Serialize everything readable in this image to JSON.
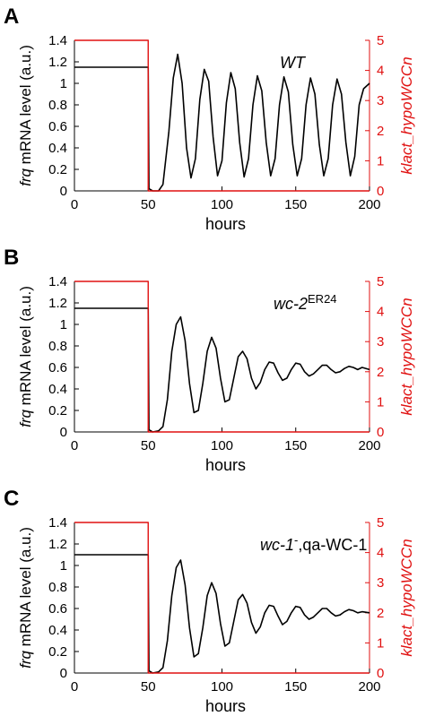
{
  "chart_data": [
    {
      "type": "line",
      "panel": "A",
      "annotation": {
        "italic": "WT",
        "sup": "",
        "rest": ""
      },
      "xlabel": "hours",
      "ylabel_left": {
        "italic": "frq",
        "rest": " mRNA level (a.u.)"
      },
      "ylabel_right": "klact_hypoWCCn",
      "xlim": [
        0,
        200
      ],
      "ylim_left": [
        0,
        1.4
      ],
      "ylim_right": [
        0,
        5
      ],
      "x_ticks": [
        "0",
        "50",
        "100",
        "150",
        "200"
      ],
      "y_ticks_left": [
        "0",
        "0.2",
        "0.4",
        "0.6",
        "0.8",
        "1",
        "1.2",
        "1.4"
      ],
      "y_ticks_right": [
        "0",
        "1",
        "2",
        "3",
        "4",
        "5"
      ],
      "colors": {
        "left": "#000000",
        "right": "#e01010"
      },
      "series": [
        {
          "axis": "left",
          "x": [
            0,
            50,
            50.5,
            53,
            57,
            60,
            64,
            67,
            70,
            73,
            76,
            79,
            82,
            85,
            88,
            91,
            94,
            97,
            100,
            103,
            106,
            109,
            112,
            115,
            118,
            121,
            124,
            127,
            130,
            133,
            136,
            139,
            142,
            145,
            148,
            151,
            154,
            157,
            160,
            163,
            166,
            169,
            172,
            175,
            178,
            181,
            184,
            187,
            190,
            193,
            196,
            200
          ],
          "y": [
            1.15,
            1.15,
            0.02,
            0,
            0,
            0.06,
            0.55,
            1.05,
            1.27,
            1.0,
            0.4,
            0.12,
            0.3,
            0.85,
            1.13,
            1.02,
            0.5,
            0.14,
            0.28,
            0.82,
            1.1,
            0.95,
            0.45,
            0.13,
            0.3,
            0.8,
            1.07,
            0.93,
            0.45,
            0.14,
            0.3,
            0.8,
            1.06,
            0.92,
            0.43,
            0.14,
            0.3,
            0.8,
            1.05,
            0.9,
            0.43,
            0.14,
            0.3,
            0.8,
            1.04,
            0.9,
            0.45,
            0.14,
            0.32,
            0.8,
            0.95,
            1.0
          ]
        },
        {
          "axis": "right",
          "x": [
            0,
            50,
            50,
            200
          ],
          "y": [
            5,
            5,
            0,
            0
          ]
        }
      ]
    },
    {
      "type": "line",
      "panel": "B",
      "annotation": {
        "italic": "wc-2",
        "sup": "ER24",
        "rest": ""
      },
      "xlabel": "hours",
      "ylabel_left": {
        "italic": "frq",
        "rest": " mRNA level (a.u.)"
      },
      "ylabel_right": "klact_hypoWCCn",
      "xlim": [
        0,
        200
      ],
      "ylim_left": [
        0,
        1.4
      ],
      "ylim_right": [
        0,
        5
      ],
      "x_ticks": [
        "0",
        "50",
        "100",
        "150",
        "200"
      ],
      "y_ticks_left": [
        "0",
        "0.2",
        "0.4",
        "0.6",
        "0.8",
        "1",
        "1.2",
        "1.4"
      ],
      "y_ticks_right": [
        "0",
        "1",
        "2",
        "3",
        "4",
        "5"
      ],
      "colors": {
        "left": "#000000",
        "right": "#e01010"
      },
      "series": [
        {
          "axis": "left",
          "x": [
            0,
            50,
            50.5,
            53,
            57,
            60,
            63,
            66,
            69,
            72,
            75,
            78,
            81,
            84,
            87,
            90,
            93,
            96,
            99,
            102,
            105,
            108,
            111,
            114,
            117,
            120,
            123,
            126,
            129,
            132,
            135,
            138,
            141,
            144,
            147,
            150,
            153,
            156,
            159,
            162,
            165,
            168,
            171,
            174,
            177,
            180,
            183,
            186,
            189,
            192,
            195,
            200
          ],
          "y": [
            1.15,
            1.15,
            0.02,
            0,
            0.01,
            0.05,
            0.3,
            0.75,
            1.0,
            1.07,
            0.85,
            0.45,
            0.18,
            0.2,
            0.45,
            0.75,
            0.88,
            0.78,
            0.5,
            0.28,
            0.3,
            0.5,
            0.7,
            0.75,
            0.68,
            0.5,
            0.4,
            0.46,
            0.58,
            0.65,
            0.64,
            0.55,
            0.48,
            0.5,
            0.58,
            0.64,
            0.63,
            0.56,
            0.52,
            0.54,
            0.58,
            0.62,
            0.62,
            0.58,
            0.55,
            0.56,
            0.59,
            0.61,
            0.6,
            0.58,
            0.6,
            0.58
          ]
        },
        {
          "axis": "right",
          "x": [
            0,
            50,
            50,
            200
          ],
          "y": [
            5,
            5,
            0,
            0
          ]
        }
      ]
    },
    {
      "type": "line",
      "panel": "C",
      "annotation": {
        "italic": "wc-1",
        "sup": "-",
        "rest": ",qa-WC-1"
      },
      "xlabel": "hours",
      "ylabel_left": {
        "italic": "frq",
        "rest": " mRNA level (a.u.)"
      },
      "ylabel_right": "klact_hypoWCCn",
      "xlim": [
        0,
        200
      ],
      "ylim_left": [
        0,
        1.4
      ],
      "ylim_right": [
        0,
        5
      ],
      "x_ticks": [
        "0",
        "50",
        "100",
        "150",
        "200"
      ],
      "y_ticks_left": [
        "0",
        "0.2",
        "0.4",
        "0.6",
        "0.8",
        "1",
        "1.2",
        "1.4"
      ],
      "y_ticks_right": [
        "0",
        "1",
        "2",
        "3",
        "4",
        "5"
      ],
      "colors": {
        "left": "#000000",
        "right": "#e01010"
      },
      "series": [
        {
          "axis": "left",
          "x": [
            0,
            50,
            50.5,
            53,
            57,
            60,
            63,
            66,
            69,
            72,
            75,
            78,
            81,
            84,
            87,
            90,
            93,
            96,
            99,
            102,
            105,
            108,
            111,
            114,
            117,
            120,
            123,
            126,
            129,
            132,
            135,
            138,
            141,
            144,
            147,
            150,
            153,
            156,
            159,
            162,
            165,
            168,
            171,
            174,
            177,
            180,
            183,
            186,
            189,
            192,
            195,
            200
          ],
          "y": [
            1.1,
            1.1,
            0.02,
            0,
            0.01,
            0.05,
            0.3,
            0.72,
            0.98,
            1.05,
            0.82,
            0.42,
            0.15,
            0.18,
            0.42,
            0.72,
            0.84,
            0.74,
            0.46,
            0.25,
            0.28,
            0.48,
            0.68,
            0.73,
            0.65,
            0.47,
            0.37,
            0.43,
            0.56,
            0.63,
            0.62,
            0.53,
            0.45,
            0.48,
            0.56,
            0.62,
            0.61,
            0.54,
            0.5,
            0.52,
            0.56,
            0.6,
            0.6,
            0.56,
            0.53,
            0.54,
            0.57,
            0.59,
            0.58,
            0.56,
            0.57,
            0.56
          ]
        },
        {
          "axis": "right",
          "x": [
            0,
            50,
            50,
            200
          ],
          "y": [
            5,
            5,
            0,
            0
          ]
        }
      ]
    }
  ]
}
